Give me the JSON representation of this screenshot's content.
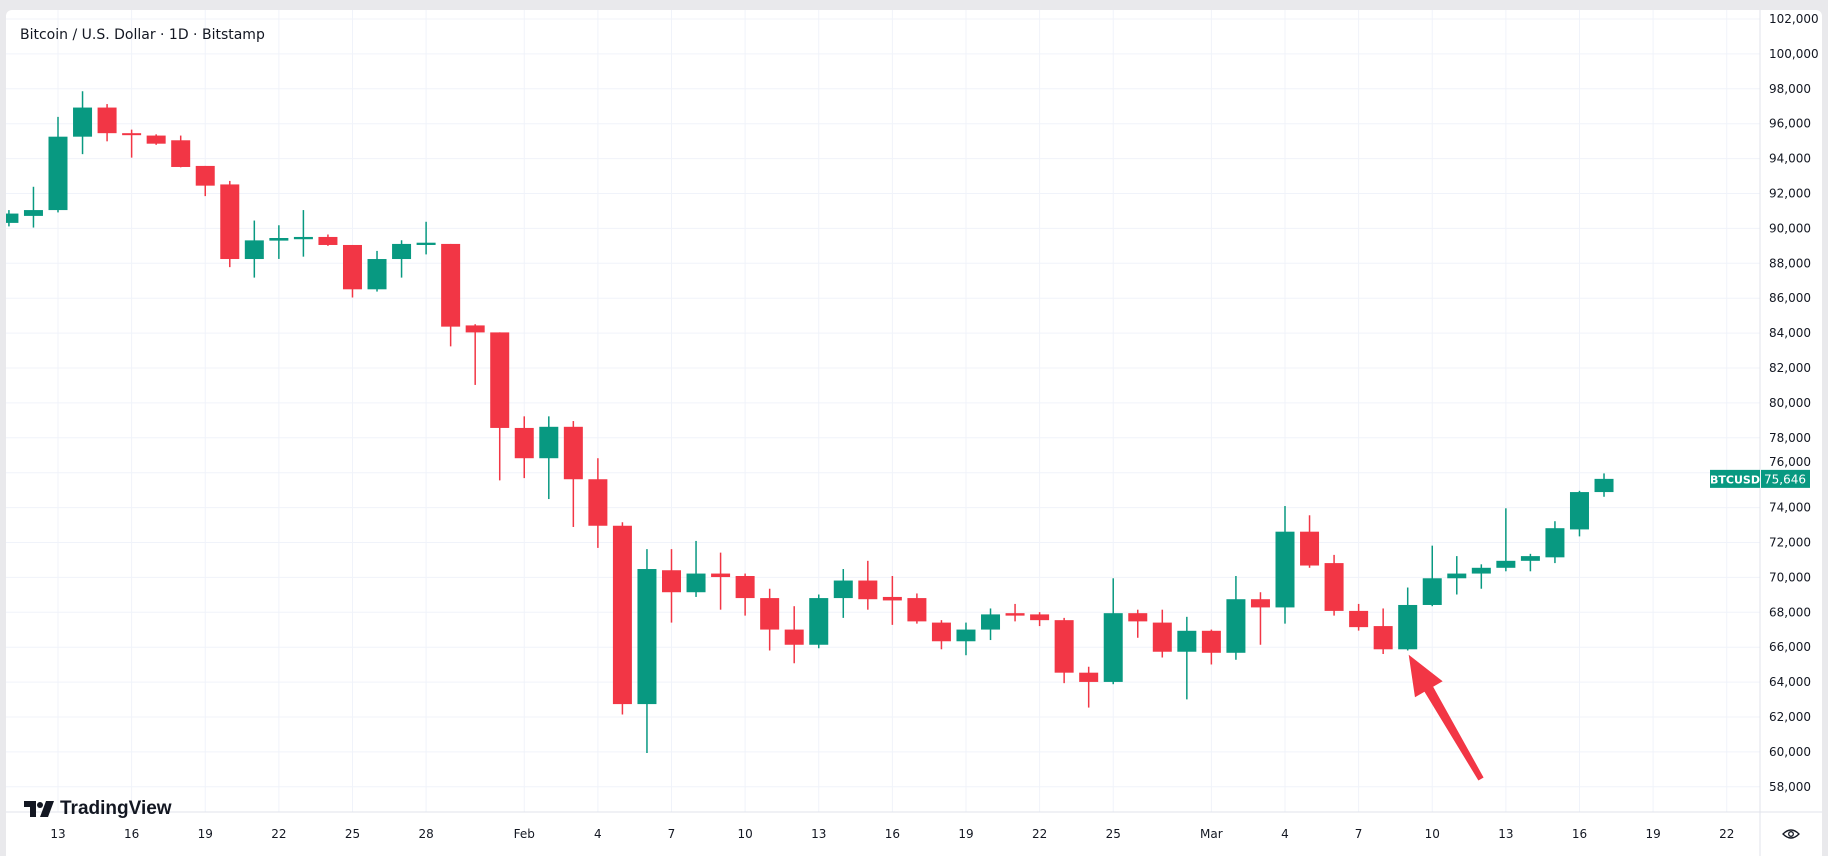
{
  "header": {
    "title": "Bitcoin / U.S. Dollar · 1D · Bitstamp"
  },
  "logo": {
    "text": "TradingView"
  },
  "settings_icon": "eye-icon",
  "colors": {
    "up": "#089981",
    "down": "#f23645",
    "grid": "#f0f3fa",
    "annotation": "#f23645"
  },
  "chart_data": {
    "type": "candlestick",
    "title": "Bitcoin / U.S. Dollar · 1D · Bitstamp",
    "symbol": "BTCUSD",
    "last_price": "75,646",
    "ylim": [
      56800,
      102800
    ],
    "y_ticks": [
      "102,000",
      "100,000",
      "98,000",
      "96,000",
      "94,000",
      "92,000",
      "90,000",
      "88,000",
      "86,000",
      "84,000",
      "82,000",
      "80,000",
      "78,000",
      "76,000",
      "74,000",
      "72,000",
      "70,000",
      "68,000",
      "66,000",
      "64,000",
      "62,000",
      "60,000",
      "58,000"
    ],
    "x_ticks": [
      {
        "date": "Jan 13",
        "label": "13"
      },
      {
        "date": "Jan 16",
        "label": "16"
      },
      {
        "date": "Jan 19",
        "label": "19"
      },
      {
        "date": "Jan 22",
        "label": "22"
      },
      {
        "date": "Jan 25",
        "label": "25"
      },
      {
        "date": "Jan 28",
        "label": "28"
      },
      {
        "date": "Feb 1",
        "label": "Feb"
      },
      {
        "date": "Feb 4",
        "label": "4"
      },
      {
        "date": "Feb 7",
        "label": "7"
      },
      {
        "date": "Feb 10",
        "label": "10"
      },
      {
        "date": "Feb 13",
        "label": "13"
      },
      {
        "date": "Feb 16",
        "label": "16"
      },
      {
        "date": "Feb 19",
        "label": "19"
      },
      {
        "date": "Feb 22",
        "label": "22"
      },
      {
        "date": "Feb 25",
        "label": "25"
      },
      {
        "date": "Mar 1",
        "label": "Mar"
      },
      {
        "date": "Mar 4",
        "label": "4"
      },
      {
        "date": "Mar 7",
        "label": "7"
      },
      {
        "date": "Mar 10",
        "label": "10"
      },
      {
        "date": "Mar 13",
        "label": "13"
      },
      {
        "date": "Mar 16",
        "label": "16"
      },
      {
        "date": "Mar 19",
        "label": "19"
      },
      {
        "date": "Mar 22",
        "label": "22"
      }
    ],
    "grid": true,
    "annotation": {
      "type": "arrow",
      "points_to_date": "Mar 9",
      "points_to_price": 65800
    },
    "candles": [
      [
        "Jan 11",
        90315,
        91050,
        90115,
        90850
      ],
      [
        "Jan 12",
        90716,
        92385,
        90048,
        91050
      ],
      [
        "Jan 13",
        91050,
        96391,
        90916,
        95256
      ],
      [
        "Jan 14",
        95256,
        97860,
        94255,
        96925
      ],
      [
        "Jan 15",
        96925,
        97125,
        94990,
        95457
      ],
      [
        "Jan 16",
        95457,
        95660,
        94055,
        95350
      ],
      [
        "Jan 17",
        95320,
        95390,
        94790,
        94855
      ],
      [
        "Jan 18",
        95050,
        95320,
        93500,
        93520
      ],
      [
        "Jan 19",
        93580,
        93580,
        91850,
        92450
      ],
      [
        "Jan 20",
        92520,
        92720,
        87780,
        88245
      ],
      [
        "Jan 21",
        88245,
        90450,
        87180,
        89314
      ],
      [
        "Jan 22",
        89300,
        90180,
        88250,
        89450
      ],
      [
        "Jan 23",
        89380,
        91050,
        88380,
        89510
      ],
      [
        "Jan 24",
        89510,
        89650,
        89000,
        89050
      ],
      [
        "Jan 25",
        89050,
        89050,
        86040,
        86510
      ],
      [
        "Jan 26",
        86510,
        88710,
        86380,
        88245
      ],
      [
        "Jan 27",
        88245,
        89320,
        87180,
        89110
      ],
      [
        "Jan 28",
        89050,
        90380,
        88510,
        89180
      ],
      [
        "Jan 29",
        89110,
        89110,
        83240,
        84370
      ],
      [
        "Jan 30",
        84440,
        84510,
        81030,
        84040
      ],
      [
        "Jan 31",
        84040,
        84040,
        75560,
        78565
      ],
      [
        "Feb 1",
        78565,
        79230,
        75690,
        76830
      ],
      [
        "Feb 2",
        76830,
        79230,
        74490,
        78630
      ],
      [
        "Feb 3",
        78630,
        78960,
        72890,
        75625
      ],
      [
        "Feb 4",
        75625,
        76830,
        71690,
        72960
      ],
      [
        "Feb 5",
        72960,
        73160,
        62140,
        62740
      ],
      [
        "Feb 6",
        62740,
        71620,
        59935,
        70480
      ],
      [
        "Feb 7",
        70410,
        71620,
        67410,
        69150
      ],
      [
        "Feb 8",
        69150,
        72090,
        68880,
        70220
      ],
      [
        "Feb 9",
        70220,
        71420,
        68150,
        70020
      ],
      [
        "Feb 10",
        70080,
        70220,
        67810,
        68815
      ],
      [
        "Feb 11",
        68815,
        69350,
        65810,
        67010
      ],
      [
        "Feb 12",
        67010,
        68350,
        65080,
        66140
      ],
      [
        "Feb 13",
        66140,
        69020,
        65940,
        68815
      ],
      [
        "Feb 14",
        68815,
        70480,
        67680,
        69820
      ],
      [
        "Feb 15",
        69820,
        70950,
        68150,
        68750
      ],
      [
        "Feb 16",
        68880,
        70080,
        67280,
        68680
      ],
      [
        "Feb 17",
        68815,
        69080,
        67350,
        67480
      ],
      [
        "Feb 18",
        67410,
        67550,
        65880,
        66340
      ],
      [
        "Feb 19",
        66340,
        67410,
        65540,
        67010
      ],
      [
        "Feb 20",
        67010,
        68220,
        66410,
        67880
      ],
      [
        "Feb 21",
        67950,
        68480,
        67480,
        67810
      ],
      [
        "Feb 22",
        67880,
        68010,
        67210,
        67550
      ],
      [
        "Feb 23",
        67550,
        67680,
        63940,
        64540
      ],
      [
        "Feb 24",
        64540,
        64880,
        62540,
        64010
      ],
      [
        "Feb 25",
        64010,
        69950,
        63880,
        67950
      ],
      [
        "Feb 26",
        67950,
        68150,
        66540,
        67480
      ],
      [
        "Feb 27",
        67410,
        68150,
        65410,
        65740
      ],
      [
        "Feb 28",
        65740,
        67740,
        63010,
        66940
      ],
      [
        "Mar 1",
        66940,
        67010,
        65010,
        65680
      ],
      [
        "Mar 2",
        65680,
        70080,
        65280,
        68750
      ],
      [
        "Mar 3",
        68750,
        69150,
        66140,
        68280
      ],
      [
        "Mar 4",
        68280,
        74090,
        67350,
        72620
      ],
      [
        "Mar 5",
        72620,
        73560,
        70550,
        70680
      ],
      [
        "Mar 6",
        70820,
        71290,
        67810,
        68080
      ],
      [
        "Mar 7",
        68080,
        68480,
        66950,
        67150
      ],
      [
        "Mar 8",
        67210,
        68220,
        65610,
        65880
      ],
      [
        "Mar 9",
        65880,
        69420,
        65810,
        68420
      ],
      [
        "Mar 10",
        68420,
        71820,
        68350,
        69950
      ],
      [
        "Mar 11",
        69950,
        71220,
        69020,
        70220
      ],
      [
        "Mar 12",
        70220,
        70750,
        69350,
        70550
      ],
      [
        "Mar 13",
        70550,
        73960,
        70350,
        70950
      ],
      [
        "Mar 14",
        70950,
        71350,
        70350,
        71220
      ],
      [
        "Mar 15",
        71150,
        73220,
        70820,
        72820
      ],
      [
        "Mar 16",
        72750,
        74960,
        72350,
        74890
      ],
      [
        "Mar 17",
        74890,
        75960,
        74620,
        75646
      ]
    ]
  }
}
